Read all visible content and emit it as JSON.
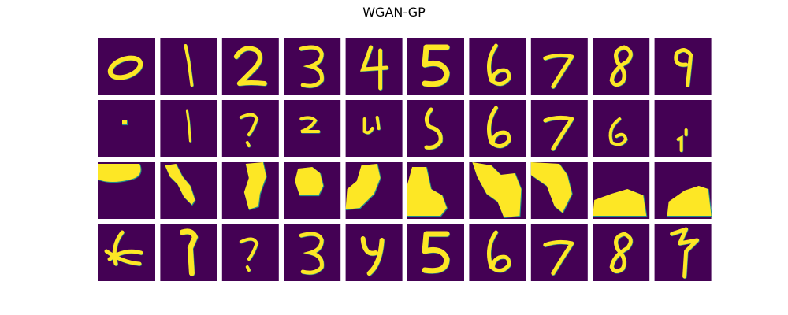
{
  "figure": {
    "title": "WGAN-GP",
    "rows": 4,
    "cols": 10,
    "cell_background_color": "#440154",
    "stroke_color": "#fde725",
    "edge_color": "#21918c",
    "cells": [
      [
        {
          "label": "0",
          "content": "ring"
        },
        {
          "label": "1",
          "content": "bar"
        },
        {
          "label": "2",
          "content": "two"
        },
        {
          "label": "3",
          "content": "three"
        },
        {
          "label": "4",
          "content": "four"
        },
        {
          "label": "5",
          "content": "five"
        },
        {
          "label": "6",
          "content": "six"
        },
        {
          "label": "7",
          "content": "seven"
        },
        {
          "label": "8",
          "content": "eight"
        },
        {
          "label": "9",
          "content": "nine"
        }
      ],
      [
        {
          "label": "",
          "content": "dot"
        },
        {
          "label": "",
          "content": "thin-bar"
        },
        {
          "label": "",
          "content": "hook"
        },
        {
          "label": "",
          "content": "small-two"
        },
        {
          "label": "",
          "content": "u-stroke"
        },
        {
          "label": "",
          "content": "s-curve"
        },
        {
          "label": "",
          "content": "six"
        },
        {
          "label": "",
          "content": "seven"
        },
        {
          "label": "",
          "content": "small-six"
        },
        {
          "label": "",
          "content": "tick"
        }
      ],
      [
        {
          "label": "",
          "content": "blob-top"
        },
        {
          "label": "",
          "content": "blob-diagonal"
        },
        {
          "label": "",
          "content": "blob-center"
        },
        {
          "label": "",
          "content": "blob-square"
        },
        {
          "label": "",
          "content": "blob-left"
        },
        {
          "label": "",
          "content": "blob-tall"
        },
        {
          "label": "",
          "content": "blob-wide"
        },
        {
          "label": "",
          "content": "blob-corner"
        },
        {
          "label": "",
          "content": "blob-bottom"
        },
        {
          "label": "",
          "content": "blob-bottom-right"
        }
      ],
      [
        {
          "label": "",
          "content": "scribble"
        },
        {
          "label": "",
          "content": "bone"
        },
        {
          "label": "",
          "content": "hook"
        },
        {
          "label": "",
          "content": "three"
        },
        {
          "label": "",
          "content": "y-shape"
        },
        {
          "label": "",
          "content": "five"
        },
        {
          "label": "",
          "content": "six"
        },
        {
          "label": "",
          "content": "seven"
        },
        {
          "label": "",
          "content": "eight"
        },
        {
          "label": "",
          "content": "bolt"
        }
      ]
    ]
  }
}
